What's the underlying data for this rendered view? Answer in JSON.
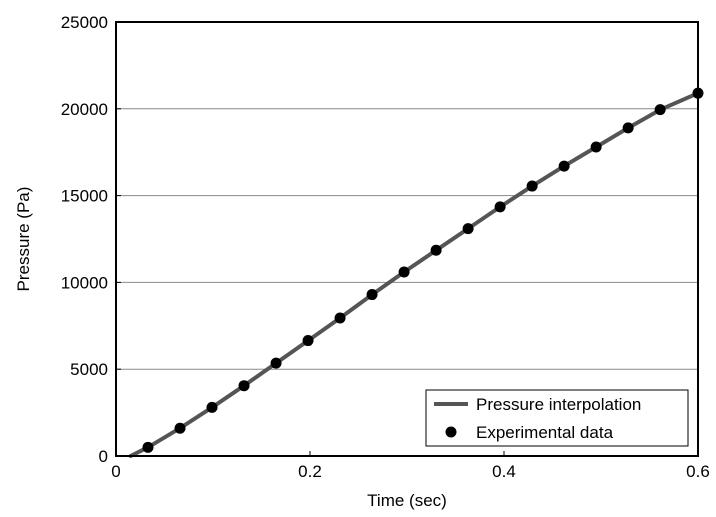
{
  "chart_data": {
    "type": "line",
    "title": "",
    "xlabel": "Time (sec)",
    "ylabel": "Pressure (Pa)",
    "xlim": [
      0,
      0.6
    ],
    "ylim": [
      0,
      25000
    ],
    "x_ticks": [
      "0",
      "0.2",
      "0.4",
      "0.6"
    ],
    "y_ticks": [
      "0",
      "5000",
      "10000",
      "15000",
      "20000",
      "25000"
    ],
    "x_tick_values": [
      0,
      0.2,
      0.4,
      0.6
    ],
    "y_tick_values": [
      0,
      5000,
      10000,
      15000,
      20000,
      25000
    ],
    "grid": "horizontal",
    "legend_position": "bottom-right",
    "series": [
      {
        "name": "Pressure interpolation",
        "kind": "line",
        "color": "#555555",
        "x": [
          0.015,
          0.033,
          0.066,
          0.099,
          0.132,
          0.165,
          0.198,
          0.231,
          0.264,
          0.297,
          0.33,
          0.363,
          0.396,
          0.429,
          0.462,
          0.495,
          0.528,
          0.561,
          0.6
        ],
        "y": [
          0,
          500,
          1600,
          2800,
          4050,
          5350,
          6650,
          7950,
          9300,
          10600,
          11850,
          13100,
          14350,
          15550,
          16700,
          17800,
          18900,
          19950,
          20900
        ]
      },
      {
        "name": "Experimental data",
        "kind": "scatter",
        "color": "#000000",
        "x": [
          0.033,
          0.066,
          0.099,
          0.132,
          0.165,
          0.198,
          0.231,
          0.264,
          0.297,
          0.33,
          0.363,
          0.396,
          0.429,
          0.462,
          0.495,
          0.528,
          0.561,
          0.6
        ],
        "y": [
          500,
          1600,
          2800,
          4050,
          5350,
          6650,
          7950,
          9300,
          10600,
          11850,
          13100,
          14350,
          15550,
          16700,
          17800,
          18900,
          19950,
          20900
        ]
      }
    ]
  }
}
